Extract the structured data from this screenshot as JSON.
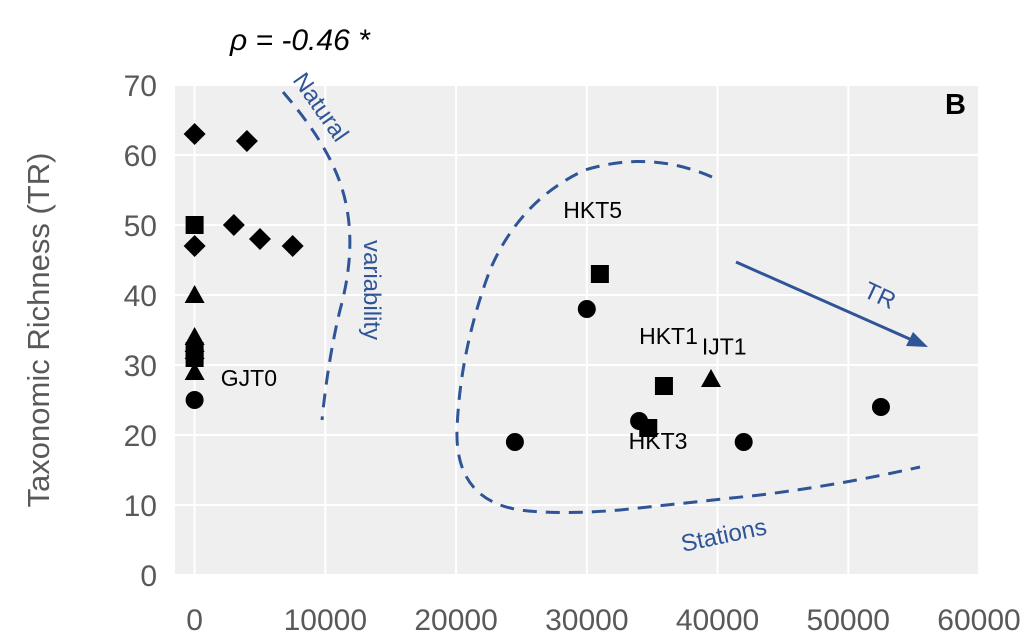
{
  "chart_data": {
    "type": "scatter",
    "panel_letter": "B",
    "correlation_annotation": "ρ = -0.46 *",
    "ylabel": "Taxonomic Richness (TR)",
    "xlabel": "",
    "xlim": [
      -1500,
      60000
    ],
    "ylim": [
      0,
      70
    ],
    "x_ticks": [
      "0",
      "10000",
      "20000",
      "30000",
      "40000",
      "50000",
      "60000"
    ],
    "y_ticks": [
      "0",
      "10",
      "20",
      "30",
      "40",
      "50",
      "60",
      "70"
    ],
    "grid": true,
    "series": [
      {
        "marker": "diamond",
        "points": [
          {
            "x": 0,
            "y": 63
          },
          {
            "x": 4000,
            "y": 62
          },
          {
            "x": 3000,
            "y": 50
          },
          {
            "x": 5000,
            "y": 48
          },
          {
            "x": 7500,
            "y": 47
          },
          {
            "x": 0,
            "y": 47
          }
        ]
      },
      {
        "marker": "square",
        "points": [
          {
            "x": 0,
            "y": 50
          },
          {
            "x": 0,
            "y": 32
          },
          {
            "x": 0,
            "y": 31
          },
          {
            "x": 31000,
            "y": 43
          },
          {
            "x": 35900,
            "y": 27
          },
          {
            "x": 34700,
            "y": 21
          }
        ]
      },
      {
        "marker": "triangle",
        "points": [
          {
            "x": 0,
            "y": 40
          },
          {
            "x": 0,
            "y": 34
          },
          {
            "x": 0,
            "y": 33
          },
          {
            "x": 0,
            "y": 32
          },
          {
            "x": 0,
            "y": 29
          },
          {
            "x": 39500,
            "y": 28
          }
        ]
      },
      {
        "marker": "circle",
        "points": [
          {
            "x": 0,
            "y": 25
          },
          {
            "x": 24500,
            "y": 19
          },
          {
            "x": 30000,
            "y": 38
          },
          {
            "x": 34000,
            "y": 22
          },
          {
            "x": 42000,
            "y": 19
          },
          {
            "x": 52500,
            "y": 24
          }
        ]
      }
    ],
    "point_labels": [
      {
        "text": "GJT0",
        "x": 2000,
        "y": 27
      },
      {
        "text": "HKT5",
        "x": 28200,
        "y": 51
      },
      {
        "text": "HKT1",
        "x": 34000,
        "y": 33
      },
      {
        "text": "IJT1",
        "x": 38800,
        "y": 31.5
      },
      {
        "text": "HKT3",
        "x": 33200,
        "y": 18
      }
    ],
    "annotations": {
      "natural": "Natural",
      "variability": "variability",
      "stations": "Stations",
      "trend": "TR"
    },
    "colors": {
      "plot_background": "#efefef",
      "grid": "#ffffff",
      "markers": "#000000",
      "annotation_blue": "#2f5597",
      "axis_text": "#595959"
    }
  }
}
